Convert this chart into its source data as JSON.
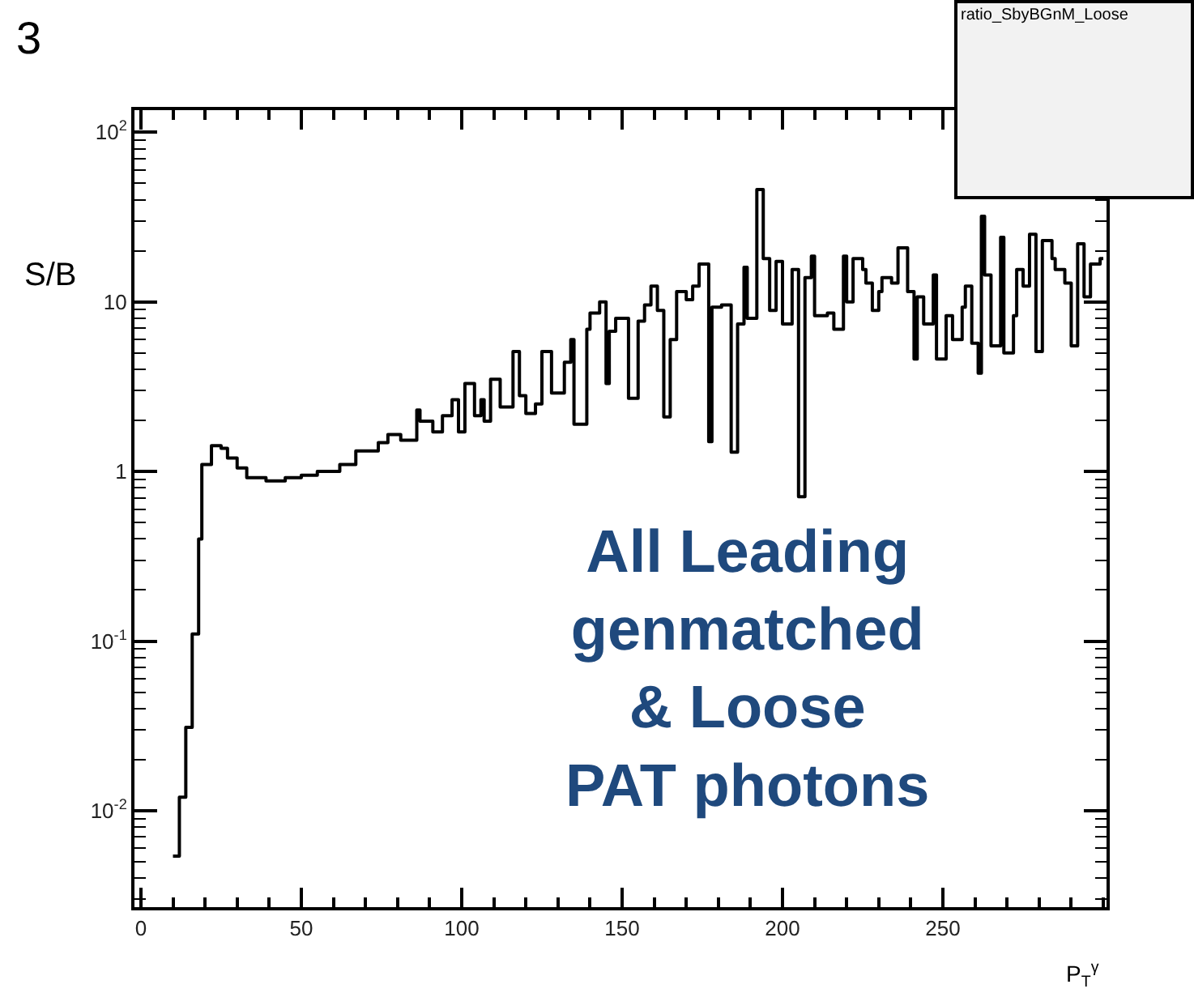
{
  "chart_data": {
    "type": "step",
    "title": "ratio_SbyBGnM_Loose",
    "ylabel": "S/B",
    "xlabel": "P$_{T}$$^{γ}$",
    "annotations": [
      "3",
      "All Leading\ngenmatched\n& Loose\nPAT photons"
    ],
    "series": [
      {
        "color": "#000000",
        "x": [
          10,
          12,
          14,
          16,
          18,
          19,
          22,
          25,
          27,
          30,
          33,
          39,
          45,
          50,
          55,
          62,
          67,
          74,
          77,
          81,
          86,
          87,
          91,
          94,
          97,
          99,
          101,
          104,
          106,
          107,
          109,
          112,
          116,
          118,
          120,
          123,
          125,
          128,
          132,
          134,
          135,
          139,
          140,
          143,
          145,
          146,
          148,
          152,
          155,
          157,
          159,
          161,
          163,
          165,
          167,
          170,
          172,
          174,
          177,
          178,
          181,
          184,
          186,
          188,
          189,
          192,
          194,
          196,
          198,
          200,
          203,
          205,
          207,
          209,
          210,
          214,
          216,
          219,
          220,
          222,
          225,
          226,
          228,
          230,
          231,
          234,
          236,
          239,
          241,
          242,
          244,
          247,
          248,
          251,
          253,
          256,
          257,
          259,
          261,
          262,
          263,
          265,
          268,
          269,
          272,
          273,
          275,
          277,
          279,
          281,
          284,
          285,
          288,
          290,
          292,
          294,
          296,
          299,
          300
        ],
        "values": [
          0.0054,
          0.012,
          0.031,
          0.11,
          0.4,
          1.1,
          1.42,
          1.37,
          1.2,
          1.05,
          0.92,
          0.88,
          0.92,
          0.95,
          1.0,
          1.1,
          1.32,
          1.48,
          1.65,
          1.53,
          2.3,
          1.98,
          1.71,
          2.13,
          2.65,
          1.71,
          3.3,
          2.13,
          2.65,
          1.98,
          3.5,
          2.4,
          5.1,
          2.8,
          2.2,
          2.5,
          5.1,
          2.9,
          4.4,
          6.0,
          1.9,
          6.9,
          8.6,
          10,
          3.3,
          6.7,
          8.0,
          2.7,
          7.7,
          9.6,
          12.4,
          8.9,
          2.1,
          6.0,
          11.5,
          10.3,
          12.4,
          16.7,
          1.5,
          9.3,
          9.6,
          1.3,
          7.4,
          16,
          8.0,
          46,
          18,
          8.9,
          17.3,
          7.4,
          15.5,
          0.71,
          13.9,
          18.6,
          8.3,
          8.6,
          6.9,
          18.6,
          10,
          18,
          15.5,
          12.9,
          8.9,
          11.5,
          13.9,
          12.9,
          20.8,
          11.5,
          4.6,
          10.7,
          7.4,
          14.4,
          4.6,
          8.3,
          6.0,
          9.3,
          12.4,
          5.7,
          3.8,
          32,
          14.4,
          5.5,
          24,
          5.0,
          8.3,
          15.5,
          12.4,
          25,
          5.1,
          23,
          18,
          15.5,
          12.9,
          5.5,
          22,
          10.7,
          16.7,
          18,
          18
        ]
      }
    ],
    "log": true,
    "xlim": [
      -2,
      301
    ],
    "ylim": [
      0.0027,
      135
    ],
    "xticks": [
      0,
      50,
      100,
      150,
      200,
      250
    ],
    "yticks": [
      {
        "value": 0.01,
        "label": "10$^{-2}$"
      },
      {
        "value": 0.1,
        "label": "10$^{-1}$"
      },
      1,
      10,
      {
        "value": 100,
        "label": "10$^{2}$"
      }
    ]
  }
}
